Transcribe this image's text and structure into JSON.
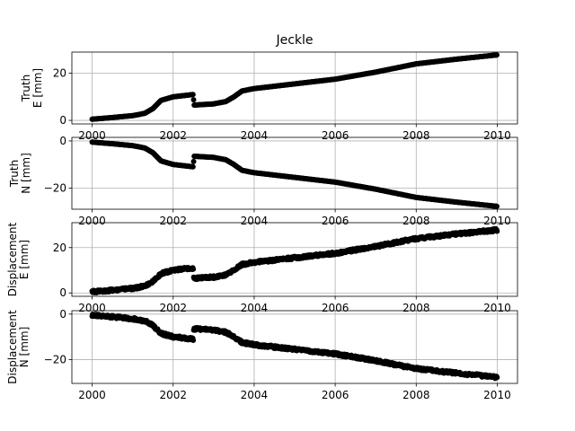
{
  "chart_data": {
    "type": "scatter",
    "title": "Jeckle",
    "marker_color": "#000000",
    "grid": true,
    "xlim": [
      1999.5,
      2010.5
    ],
    "x_ticks": [
      2000,
      2002,
      2004,
      2006,
      2008,
      2010
    ],
    "x_tick_labels": [
      "2000",
      "2002",
      "2004",
      "2006",
      "2008",
      "2010"
    ],
    "panels": [
      {
        "ylabel": [
          "Truth",
          "E [mm]"
        ],
        "ylim": [
          -1.5,
          29
        ],
        "y_ticks": [
          0,
          20
        ],
        "y_tick_labels": [
          "0",
          "20"
        ],
        "noise": 0,
        "curve": [
          [
            2000.0,
            0.5
          ],
          [
            2000.5,
            1.2
          ],
          [
            2001.0,
            2.0
          ],
          [
            2001.3,
            3.0
          ],
          [
            2001.5,
            5.0
          ],
          [
            2001.7,
            8.5
          ],
          [
            2002.0,
            10.0
          ],
          [
            2002.5,
            11.0
          ],
          [
            2002.51,
            6.5
          ],
          [
            2003.0,
            7.0
          ],
          [
            2003.3,
            8.0
          ],
          [
            2003.5,
            10.0
          ],
          [
            2003.7,
            12.5
          ],
          [
            2004.0,
            13.5
          ],
          [
            2005.0,
            15.5
          ],
          [
            2006.0,
            17.5
          ],
          [
            2007.0,
            20.5
          ],
          [
            2008.0,
            24.0
          ],
          [
            2009.0,
            26.0
          ],
          [
            2010.0,
            27.8
          ]
        ]
      },
      {
        "ylabel": [
          "Truth",
          "N [mm]"
        ],
        "ylim": [
          -29,
          1.5
        ],
        "y_ticks": [
          0,
          -20
        ],
        "y_tick_labels": [
          "0",
          "−20"
        ],
        "noise": 0,
        "curve": [
          [
            2000.0,
            -0.5
          ],
          [
            2000.5,
            -1.2
          ],
          [
            2001.0,
            -2.0
          ],
          [
            2001.3,
            -3.0
          ],
          [
            2001.5,
            -5.0
          ],
          [
            2001.7,
            -8.5
          ],
          [
            2002.0,
            -10.0
          ],
          [
            2002.5,
            -11.0
          ],
          [
            2002.51,
            -6.5
          ],
          [
            2003.0,
            -7.0
          ],
          [
            2003.3,
            -8.0
          ],
          [
            2003.5,
            -10.0
          ],
          [
            2003.7,
            -12.5
          ],
          [
            2004.0,
            -13.5
          ],
          [
            2005.0,
            -15.5
          ],
          [
            2006.0,
            -17.5
          ],
          [
            2007.0,
            -20.5
          ],
          [
            2008.0,
            -24.0
          ],
          [
            2009.0,
            -26.0
          ],
          [
            2010.0,
            -27.8
          ]
        ]
      },
      {
        "ylabel": [
          "Displacement",
          "E [mm]"
        ],
        "ylim": [
          -1.5,
          31
        ],
        "y_ticks": [
          0,
          20
        ],
        "y_tick_labels": [
          "0",
          "20"
        ],
        "noise": 0.6,
        "curve": [
          [
            2000.0,
            0.5
          ],
          [
            2000.5,
            1.2
          ],
          [
            2001.0,
            2.0
          ],
          [
            2001.3,
            3.0
          ],
          [
            2001.5,
            5.0
          ],
          [
            2001.7,
            8.5
          ],
          [
            2002.0,
            10.0
          ],
          [
            2002.5,
            11.0
          ],
          [
            2002.51,
            6.5
          ],
          [
            2003.0,
            7.0
          ],
          [
            2003.3,
            8.0
          ],
          [
            2003.5,
            10.0
          ],
          [
            2003.7,
            12.5
          ],
          [
            2004.0,
            13.5
          ],
          [
            2005.0,
            15.5
          ],
          [
            2006.0,
            17.5
          ],
          [
            2007.0,
            20.5
          ],
          [
            2008.0,
            24.0
          ],
          [
            2009.0,
            26.0
          ],
          [
            2010.0,
            27.8
          ]
        ]
      },
      {
        "ylabel": [
          "Displacement",
          "N [mm]"
        ],
        "ylim": [
          -30.5,
          1.5
        ],
        "y_ticks": [
          0,
          -20
        ],
        "y_tick_labels": [
          "0",
          "−20"
        ],
        "noise": 0.6,
        "curve": [
          [
            2000.0,
            -0.5
          ],
          [
            2000.5,
            -1.2
          ],
          [
            2001.0,
            -2.0
          ],
          [
            2001.3,
            -3.0
          ],
          [
            2001.5,
            -5.0
          ],
          [
            2001.7,
            -8.5
          ],
          [
            2002.0,
            -10.0
          ],
          [
            2002.5,
            -11.0
          ],
          [
            2002.51,
            -6.5
          ],
          [
            2003.0,
            -7.0
          ],
          [
            2003.3,
            -8.0
          ],
          [
            2003.5,
            -10.0
          ],
          [
            2003.7,
            -12.5
          ],
          [
            2004.0,
            -13.5
          ],
          [
            2005.0,
            -15.5
          ],
          [
            2006.0,
            -17.5
          ],
          [
            2007.0,
            -20.5
          ],
          [
            2008.0,
            -24.0
          ],
          [
            2009.0,
            -26.0
          ],
          [
            2010.0,
            -27.8
          ]
        ]
      }
    ]
  }
}
